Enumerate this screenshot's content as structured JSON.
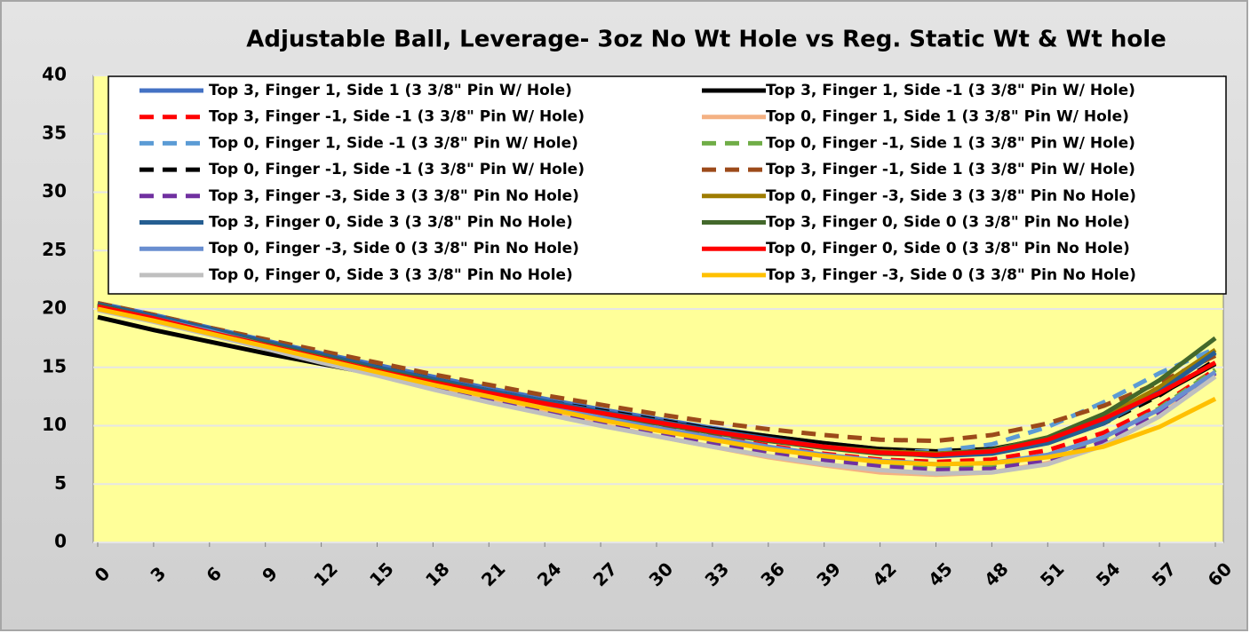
{
  "chart_data": {
    "type": "line",
    "title": "Adjustable Ball, Leverage- 3oz No Wt Hole vs Reg. Static Wt & Wt hole",
    "x": [
      0,
      3,
      6,
      9,
      12,
      15,
      18,
      21,
      24,
      27,
      30,
      33,
      36,
      39,
      42,
      45,
      48,
      51,
      54,
      57,
      60
    ],
    "xlim": [
      0,
      60
    ],
    "xticks": [
      0,
      3,
      6,
      9,
      12,
      15,
      18,
      21,
      24,
      27,
      30,
      33,
      36,
      39,
      42,
      45,
      48,
      51,
      54,
      57,
      60
    ],
    "ylim": [
      0,
      40
    ],
    "yticks": [
      0,
      5,
      10,
      15,
      20,
      25,
      30,
      35,
      40
    ],
    "grid": true,
    "series": [
      {
        "name": "Top 3, Finger 1, Side 1 (3 3/8\" Pin W/ Hole)",
        "color": "#4472c4",
        "dashed": false,
        "values": [
          20.5,
          19.5,
          18.4,
          17.3,
          16.2,
          15.2,
          14.2,
          13.2,
          12.3,
          11.4,
          10.6,
          9.8,
          9.1,
          8.5,
          8.0,
          7.7,
          7.9,
          8.8,
          10.5,
          13.0,
          16.2
        ]
      },
      {
        "name": "Top 3, Finger 1, Side -1 (3 3/8\" Pin W/ Hole)",
        "color": "#000000",
        "dashed": false,
        "values": [
          19.3,
          18.2,
          17.2,
          16.2,
          15.3,
          14.4,
          13.5,
          12.7,
          11.9,
          11.1,
          10.4,
          9.7,
          9.1,
          8.5,
          8.0,
          7.8,
          8.0,
          8.9,
          10.5,
          12.7,
          15.3
        ]
      },
      {
        "name": "Top 3, Finger -1, Side -1 (3 3/8\" Pin W/ Hole)",
        "color": "#ff0000",
        "dashed": true,
        "values": [
          20.2,
          19.2,
          18.1,
          17.0,
          15.9,
          14.8,
          13.7,
          12.7,
          11.7,
          10.8,
          9.9,
          9.1,
          8.3,
          7.6,
          7.1,
          6.9,
          7.1,
          7.9,
          9.4,
          11.7,
          14.8
        ]
      },
      {
        "name": "Top 0, Finger 1, Side 1 (3 3/8\" Pin W/ Hole)",
        "color": "#f4b183",
        "dashed": false,
        "values": [
          20.4,
          19.3,
          18.1,
          16.9,
          15.6,
          14.4,
          13.2,
          12.1,
          11.1,
          10.1,
          9.1,
          8.2,
          7.3,
          6.6,
          6.0,
          5.8,
          6.0,
          6.8,
          8.3,
          10.8,
          14.5
        ]
      },
      {
        "name": "Top 0, Finger 1, Side -1 (3 3/8\" Pin W/ Hole)",
        "color": "#5b9bd5",
        "dashed": true,
        "values": [
          20.4,
          19.4,
          18.3,
          17.2,
          16.1,
          15.0,
          14.0,
          13.0,
          12.0,
          11.1,
          10.3,
          9.5,
          8.8,
          8.2,
          7.8,
          7.8,
          8.4,
          9.9,
          12.0,
          14.5,
          16.6
        ]
      },
      {
        "name": "Top 0, Finger -1, Side 1 (3 3/8\" Pin W/ Hole)",
        "color": "#70ad47",
        "dashed": true,
        "values": [
          20.1,
          19.1,
          18.0,
          16.8,
          15.7,
          14.5,
          13.4,
          12.3,
          11.3,
          10.3,
          9.4,
          8.6,
          7.8,
          7.2,
          6.7,
          6.5,
          6.6,
          7.3,
          8.9,
          11.5,
          14.8
        ]
      },
      {
        "name": "Top 0, Finger -1, Side -1 (3 3/8\" Pin W/ Hole)",
        "color": "#000000",
        "dashed": true,
        "values": [
          20.3,
          19.3,
          18.2,
          17.1,
          16.0,
          15.0,
          14.0,
          13.0,
          12.1,
          11.3,
          10.5,
          9.7,
          9.0,
          8.4,
          7.9,
          7.6,
          7.8,
          8.6,
          10.2,
          12.6,
          15.6
        ]
      },
      {
        "name": "Top 3, Finger -1, Side 1 (3 3/8\" Pin W/ Hole)",
        "color": "#9c4a1a",
        "dashed": true,
        "values": [
          20.5,
          19.5,
          18.4,
          17.4,
          16.4,
          15.4,
          14.4,
          13.5,
          12.6,
          11.8,
          11.0,
          10.3,
          9.7,
          9.2,
          8.8,
          8.7,
          9.2,
          10.2,
          11.7,
          13.7,
          16.0
        ]
      },
      {
        "name": "Top 3, Finger -3, Side 3 (3 3/8\" Pin No Hole)",
        "color": "#7030a0",
        "dashed": true,
        "values": [
          20.0,
          19.0,
          17.9,
          16.7,
          15.6,
          14.4,
          13.3,
          12.2,
          11.2,
          10.2,
          9.3,
          8.4,
          7.6,
          7.0,
          6.5,
          6.2,
          6.3,
          7.0,
          8.6,
          11.2,
          14.5
        ]
      },
      {
        "name": "Top 0, Finger -3, Side 3 (3 3/8\" Pin No Hole)",
        "color": "#9e7c00",
        "dashed": false,
        "values": [
          20.3,
          19.3,
          18.2,
          17.1,
          16.0,
          14.9,
          13.9,
          12.9,
          12.0,
          11.1,
          10.3,
          9.5,
          8.8,
          8.2,
          7.8,
          7.6,
          7.9,
          8.9,
          10.7,
          13.3,
          16.5
        ]
      },
      {
        "name": "Top 3, Finger 0, Side 3 (3 3/8\" Pin No Hole)",
        "color": "#255e91",
        "dashed": false,
        "values": [
          20.4,
          19.4,
          18.3,
          17.2,
          16.1,
          15.0,
          14.0,
          13.0,
          12.1,
          11.2,
          10.4,
          9.6,
          8.9,
          8.2,
          7.7,
          7.4,
          7.6,
          8.5,
          10.2,
          12.9,
          16.3
        ]
      },
      {
        "name": "Top 3, Finger 0, Side 0 (3 3/8\" Pin No Hole)",
        "color": "#43682b",
        "dashed": false,
        "values": [
          20.3,
          19.2,
          18.1,
          17.0,
          15.9,
          14.8,
          13.8,
          12.8,
          11.9,
          11.0,
          10.2,
          9.4,
          8.7,
          8.1,
          7.6,
          7.5,
          7.9,
          9.0,
          11.0,
          13.9,
          17.5
        ]
      },
      {
        "name": "Top 0, Finger -3, Side 0 (3 3/8\" Pin No Hole)",
        "color": "#698ed0",
        "dashed": false,
        "values": [
          20.2,
          19.2,
          18.1,
          16.9,
          15.8,
          14.7,
          13.6,
          12.6,
          11.6,
          10.7,
          9.8,
          9.0,
          8.2,
          7.5,
          7.0,
          6.7,
          6.8,
          7.5,
          9.0,
          11.4,
          14.6
        ]
      },
      {
        "name": "Top 0, Finger 0, Side 0 (3 3/8\" Pin No Hole)",
        "color": "#ff0000",
        "dashed": false,
        "values": [
          20.2,
          19.2,
          18.0,
          16.9,
          15.8,
          14.7,
          13.7,
          12.8,
          11.9,
          11.1,
          10.3,
          9.5,
          8.8,
          8.2,
          7.7,
          7.5,
          7.8,
          8.8,
          10.6,
          12.8,
          15.4
        ]
      },
      {
        "name": "Top 0, Finger 0, Side 3 (3 3/8\" Pin No Hole)",
        "color": "#bfbfbf",
        "dashed": false,
        "values": [
          19.9,
          18.9,
          17.8,
          16.6,
          15.4,
          14.3,
          13.1,
          12.0,
          11.0,
          10.0,
          9.1,
          8.2,
          7.4,
          6.7,
          6.2,
          5.9,
          6.0,
          6.7,
          8.3,
          10.8,
          14.2
        ]
      },
      {
        "name": "Top 3, Finger -3, Side 0 (3 3/8\" Pin No Hole)",
        "color": "#ffc000",
        "dashed": false,
        "values": [
          20.0,
          19.0,
          17.9,
          16.8,
          15.7,
          14.6,
          13.5,
          12.5,
          11.5,
          10.5,
          9.6,
          8.8,
          8.0,
          7.4,
          6.9,
          6.7,
          6.8,
          7.3,
          8.2,
          9.9,
          12.3
        ]
      }
    ]
  }
}
